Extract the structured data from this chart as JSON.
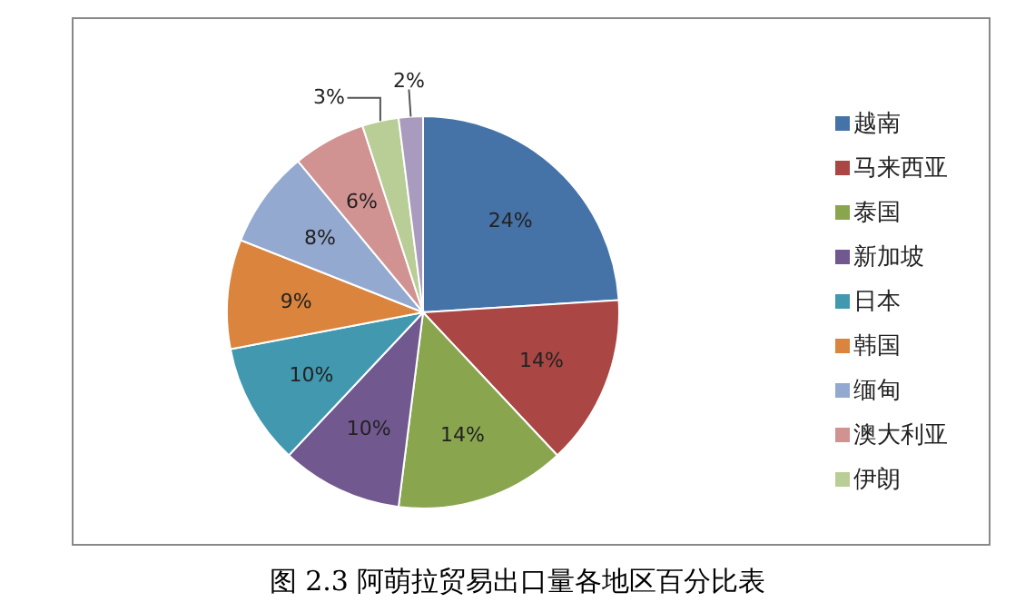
{
  "chart_data": {
    "type": "pie",
    "title": "图 2.3 阿萌拉贸易出口量各地区百分比表",
    "categories": [
      "越南",
      "马来西亚",
      "泰国",
      "新加坡",
      "日本",
      "韩国",
      "缅甸",
      "澳大利亚",
      "伊朗",
      null
    ],
    "values": [
      24,
      14,
      14,
      10,
      10,
      9,
      8,
      6,
      3,
      2
    ],
    "value_labels": [
      "24%",
      "14%",
      "14%",
      "10%",
      "10%",
      "9%",
      "8%",
      "6%",
      "3%",
      "2%"
    ],
    "colors": [
      "#4572a7",
      "#aa4643",
      "#89a54e",
      "#71588f",
      "#4198af",
      "#db843d",
      "#93a9cf",
      "#d19392",
      "#b9cd96",
      "#a99bbd"
    ],
    "legend": "right"
  }
}
